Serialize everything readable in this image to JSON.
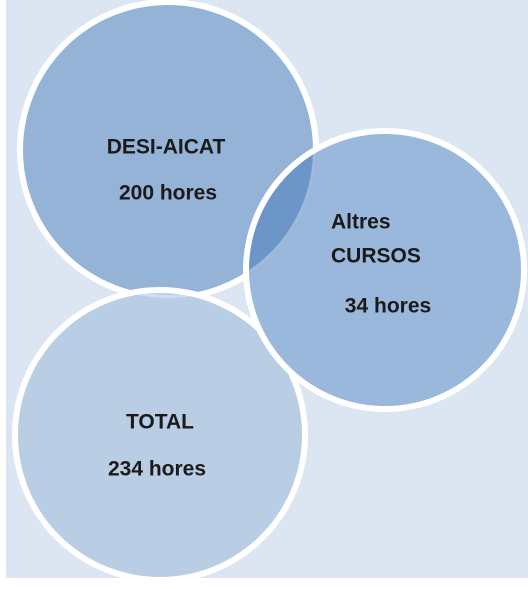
{
  "circles": [
    {
      "lines": [
        "DESI-AICAT",
        "200 hores"
      ]
    },
    {
      "lines": [
        "Altres",
        "CURSOS",
        "34 hores"
      ]
    },
    {
      "lines": [
        "TOTAL",
        "234 hores"
      ]
    }
  ]
}
